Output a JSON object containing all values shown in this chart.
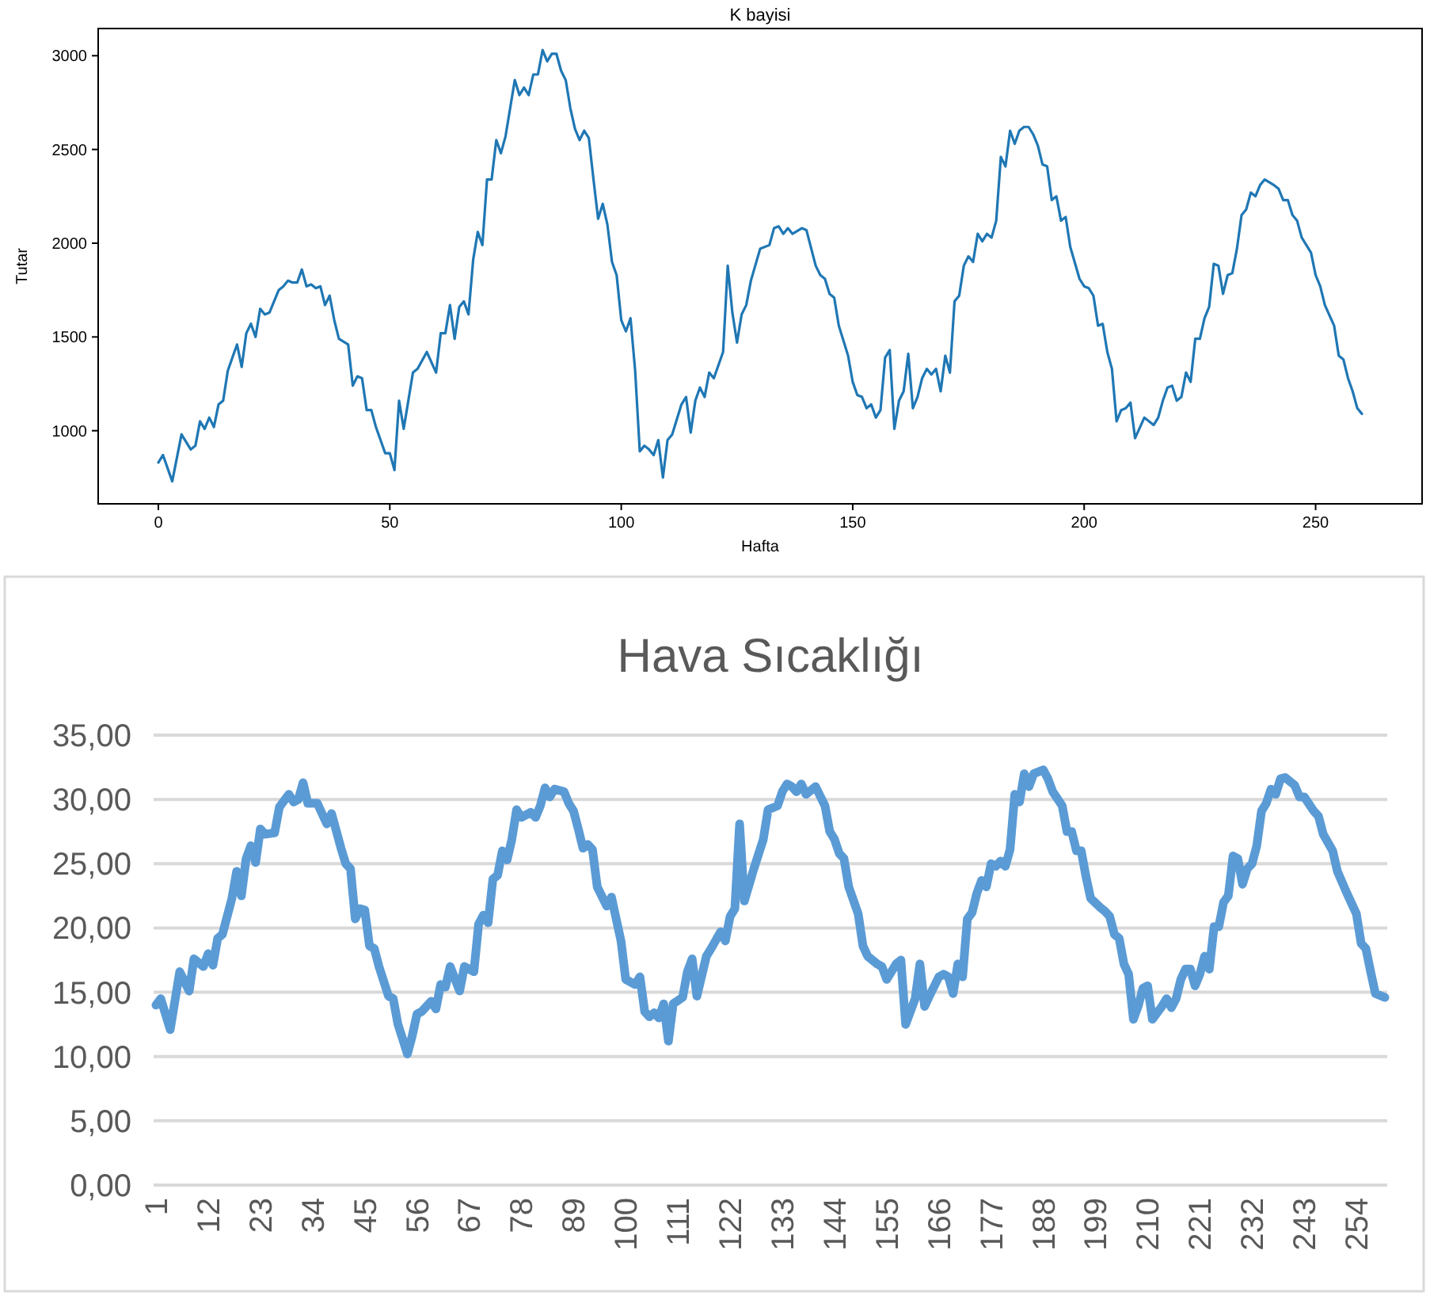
{
  "chart_data": [
    {
      "type": "line",
      "title": "K bayisi",
      "xlabel": "Hafta",
      "ylabel": "Tutar",
      "grid": false,
      "xlim": [
        -13,
        273
      ],
      "ylim": [
        610,
        3145
      ],
      "xticks": [
        0,
        50,
        100,
        150,
        200,
        250
      ],
      "yticks": [
        1000,
        1500,
        2000,
        2500,
        3000
      ],
      "series": [
        {
          "color": "#1f77b4",
          "x": [
            0,
            1,
            3,
            5,
            7,
            8,
            9,
            10,
            11,
            12,
            13,
            14,
            15,
            17,
            18,
            19,
            20,
            21,
            22,
            23,
            24,
            26,
            27,
            28,
            29,
            30,
            31,
            32,
            33,
            34,
            35,
            36,
            37,
            38,
            39,
            41,
            42,
            43,
            44,
            45,
            46,
            47,
            48,
            49,
            50,
            51,
            52,
            53,
            55,
            56,
            58,
            60,
            61,
            62,
            63,
            64,
            65,
            66,
            67,
            68,
            69,
            70,
            71,
            72,
            73,
            74,
            75,
            77,
            78,
            79,
            80,
            81,
            82,
            83,
            84,
            85,
            86,
            87,
            88,
            89,
            90,
            91,
            92,
            93,
            94,
            95,
            96,
            97,
            98,
            99,
            100,
            101,
            102,
            103,
            104,
            105,
            106,
            107,
            108,
            109,
            110,
            111,
            113,
            114,
            115,
            116,
            117,
            118,
            119,
            120,
            122,
            123,
            124,
            125,
            126,
            127,
            128,
            130,
            132,
            133,
            134,
            135,
            136,
            137,
            139,
            140,
            142,
            143,
            144,
            145,
            146,
            147,
            149,
            150,
            151,
            152,
            153,
            154,
            155,
            156,
            157,
            158,
            159,
            160,
            161,
            162,
            163,
            164,
            165,
            166,
            167,
            168,
            169,
            170,
            171,
            172,
            173,
            174,
            175,
            176,
            177,
            178,
            179,
            180,
            181,
            182,
            183,
            184,
            185,
            186,
            187,
            188,
            189,
            190,
            191,
            192,
            193,
            194,
            195,
            196,
            197,
            199,
            200,
            201,
            202,
            203,
            204,
            205,
            206,
            207,
            208,
            209,
            210,
            211,
            213,
            215,
            216,
            217,
            218,
            219,
            220,
            221,
            222,
            223,
            224,
            225,
            226,
            227,
            228,
            229,
            230,
            231,
            232,
            233,
            234,
            235,
            236,
            237,
            238,
            239,
            241,
            242,
            243,
            244,
            245,
            246,
            247,
            249,
            250,
            251,
            252,
            254,
            255,
            256,
            257,
            258,
            259,
            260
          ],
          "values": [
            830,
            870,
            730,
            980,
            900,
            920,
            1050,
            1010,
            1070,
            1020,
            1140,
            1160,
            1320,
            1460,
            1340,
            1520,
            1570,
            1500,
            1650,
            1620,
            1630,
            1750,
            1770,
            1800,
            1790,
            1790,
            1860,
            1770,
            1780,
            1760,
            1770,
            1670,
            1720,
            1590,
            1490,
            1460,
            1240,
            1290,
            1280,
            1110,
            1110,
            1020,
            950,
            880,
            880,
            790,
            1160,
            1010,
            1310,
            1330,
            1420,
            1310,
            1520,
            1520,
            1670,
            1490,
            1660,
            1690,
            1620,
            1910,
            2060,
            1990,
            2340,
            2340,
            2550,
            2480,
            2570,
            2870,
            2790,
            2830,
            2790,
            2900,
            2900,
            3030,
            2970,
            3010,
            3010,
            2920,
            2870,
            2720,
            2610,
            2550,
            2600,
            2560,
            2340,
            2130,
            2210,
            2100,
            1900,
            1830,
            1590,
            1530,
            1600,
            1320,
            890,
            920,
            900,
            870,
            950,
            750,
            950,
            980,
            1140,
            1180,
            990,
            1160,
            1230,
            1180,
            1310,
            1280,
            1420,
            1880,
            1630,
            1470,
            1620,
            1670,
            1800,
            1970,
            1990,
            2080,
            2090,
            2050,
            2080,
            2050,
            2080,
            2070,
            1880,
            1830,
            1810,
            1730,
            1710,
            1560,
            1400,
            1260,
            1190,
            1180,
            1120,
            1140,
            1070,
            1110,
            1390,
            1430,
            1010,
            1160,
            1210,
            1410,
            1120,
            1180,
            1280,
            1330,
            1300,
            1330,
            1210,
            1400,
            1310,
            1690,
            1720,
            1880,
            1930,
            1900,
            2050,
            2010,
            2050,
            2030,
            2120,
            2460,
            2410,
            2600,
            2530,
            2600,
            2620,
            2620,
            2580,
            2520,
            2420,
            2410,
            2230,
            2250,
            2120,
            2140,
            1980,
            1810,
            1770,
            1760,
            1720,
            1560,
            1570,
            1420,
            1330,
            1050,
            1110,
            1120,
            1150,
            960,
            1070,
            1030,
            1070,
            1160,
            1230,
            1240,
            1160,
            1180,
            1310,
            1260,
            1490,
            1490,
            1600,
            1660,
            1890,
            1880,
            1730,
            1830,
            1840,
            1970,
            2150,
            2180,
            2270,
            2250,
            2310,
            2340,
            2310,
            2290,
            2230,
            2230,
            2150,
            2120,
            2030,
            1950,
            1830,
            1770,
            1670,
            1560,
            1400,
            1380,
            1280,
            1210,
            1120,
            1090
          ]
        }
      ]
    },
    {
      "type": "line",
      "title": "Hava Sıcaklığı",
      "grid": "y",
      "xlim": [
        0.5,
        260.5
      ],
      "ylim": [
        0,
        35
      ],
      "xticks": [
        1,
        12,
        23,
        34,
        45,
        56,
        67,
        78,
        89,
        100,
        111,
        122,
        133,
        144,
        155,
        166,
        177,
        188,
        199,
        210,
        221,
        232,
        243,
        254
      ],
      "yticks": [
        {
          "value": 0,
          "label": "0,00"
        },
        {
          "value": 5,
          "label": "5,00"
        },
        {
          "value": 10,
          "label": "10,00"
        },
        {
          "value": 15,
          "label": "15,00"
        },
        {
          "value": 20,
          "label": "20,00"
        },
        {
          "value": 25,
          "label": "25,00"
        },
        {
          "value": 30,
          "label": "30,00"
        },
        {
          "value": 35,
          "label": "35,00"
        }
      ],
      "series": [
        {
          "color": "#5b9bd5",
          "x": [
            1,
            2,
            4,
            6,
            8,
            9,
            11,
            12,
            13,
            14,
            15,
            17,
            18,
            19,
            20,
            21,
            22,
            23,
            24,
            26,
            27,
            29,
            30,
            31,
            32,
            33,
            34,
            35,
            37,
            38,
            40,
            41,
            42,
            43,
            44,
            45,
            46,
            47,
            48,
            50,
            51,
            52,
            54,
            55,
            56,
            57,
            59,
            60,
            61,
            62,
            63,
            65,
            66,
            68,
            69,
            70,
            71,
            72,
            73,
            74,
            75,
            76,
            77,
            78,
            80,
            81,
            82,
            83,
            84,
            85,
            87,
            88,
            89,
            90,
            91,
            92,
            93,
            94,
            96,
            97,
            98,
            99,
            100,
            102,
            103,
            104,
            105,
            106,
            107,
            108,
            109,
            110,
            112,
            113,
            114,
            115,
            117,
            118,
            120,
            121,
            122,
            123,
            124,
            125,
            127,
            129,
            130,
            132,
            133,
            134,
            135,
            136,
            137,
            138,
            140,
            142,
            143,
            144,
            145,
            146,
            147,
            149,
            150,
            151,
            153,
            154,
            155,
            156,
            157,
            158,
            159,
            161,
            162,
            163,
            164,
            166,
            167,
            168,
            169,
            170,
            171,
            172,
            173,
            174,
            175,
            176,
            177,
            178,
            179,
            180,
            181,
            182,
            183,
            184,
            185,
            186,
            188,
            189,
            190,
            192,
            193,
            194,
            195,
            196,
            197,
            198,
            200,
            201,
            202,
            203,
            204,
            205,
            206,
            207,
            208,
            209,
            210,
            211,
            213,
            214,
            215,
            216,
            217,
            218,
            219,
            220,
            221,
            222,
            223,
            224,
            225,
            226,
            227,
            228,
            229,
            230,
            231,
            232,
            233,
            234,
            235,
            236,
            237,
            238,
            239,
            240,
            241,
            242,
            243,
            245,
            246,
            247,
            249,
            250,
            252,
            254,
            255,
            256,
            257,
            258,
            260
          ],
          "values": [
            14.0,
            14.5,
            12.1,
            16.6,
            15.1,
            17.6,
            17.0,
            18.0,
            17.1,
            19.2,
            19.5,
            22.3,
            24.4,
            22.5,
            25.4,
            26.4,
            25.1,
            27.7,
            27.3,
            27.4,
            29.4,
            30.4,
            29.8,
            30.0,
            31.3,
            29.7,
            29.7,
            29.7,
            28.1,
            28.9,
            26.2,
            25.0,
            24.6,
            20.7,
            21.5,
            21.4,
            18.6,
            18.4,
            17.0,
            14.7,
            14.5,
            12.5,
            10.2,
            11.6,
            13.3,
            13.5,
            14.3,
            13.7,
            15.6,
            15.4,
            17.0,
            15.1,
            17.0,
            16.6,
            20.3,
            21.0,
            20.4,
            23.8,
            24.1,
            26.0,
            25.3,
            26.9,
            29.2,
            28.6,
            29.0,
            28.6,
            29.5,
            30.9,
            30.2,
            30.8,
            30.6,
            29.7,
            29.1,
            27.7,
            26.2,
            26.5,
            26.1,
            23.2,
            21.7,
            22.4,
            20.7,
            19.0,
            16.0,
            15.6,
            16.2,
            13.5,
            13.1,
            13.4,
            13.0,
            14.1,
            11.2,
            14.1,
            14.6,
            16.6,
            17.6,
            14.7,
            17.8,
            18.4,
            19.7,
            19.0,
            20.9,
            21.5,
            28.1,
            22.1,
            24.6,
            26.9,
            29.2,
            29.5,
            30.6,
            31.2,
            31.0,
            30.6,
            31.2,
            30.4,
            31.0,
            29.5,
            27.5,
            26.9,
            25.8,
            25.4,
            23.2,
            21.1,
            18.6,
            17.8,
            17.2,
            17.0,
            16.0,
            16.6,
            17.2,
            17.5,
            12.5,
            14.5,
            17.2,
            13.9,
            14.7,
            16.2,
            16.4,
            16.2,
            14.9,
            17.2,
            16.2,
            20.7,
            21.2,
            22.7,
            23.7,
            23.2,
            25.0,
            24.8,
            25.2,
            24.8,
            26.1,
            30.4,
            29.8,
            32.0,
            31.0,
            32.0,
            32.3,
            31.6,
            30.6,
            29.5,
            27.5,
            27.5,
            26.0,
            26.0,
            24.0,
            22.3,
            21.6,
            21.3,
            20.9,
            19.5,
            19.2,
            17.2,
            16.4,
            12.9,
            13.9,
            15.3,
            15.5,
            12.9,
            13.9,
            14.5,
            13.8,
            14.5,
            16.0,
            16.8,
            16.8,
            15.5,
            16.4,
            17.8,
            16.8,
            20.1,
            20.1,
            22.0,
            22.5,
            25.6,
            25.4,
            23.4,
            24.6,
            25.0,
            26.4,
            29.1,
            29.7,
            30.8,
            30.4,
            31.6,
            31.7,
            31.4,
            31.1,
            30.2,
            30.2,
            29.1,
            28.7,
            27.3,
            26.0,
            24.4,
            22.7,
            21.1,
            18.8,
            18.4,
            16.6,
            14.9,
            14.6
          ]
        }
      ]
    }
  ]
}
